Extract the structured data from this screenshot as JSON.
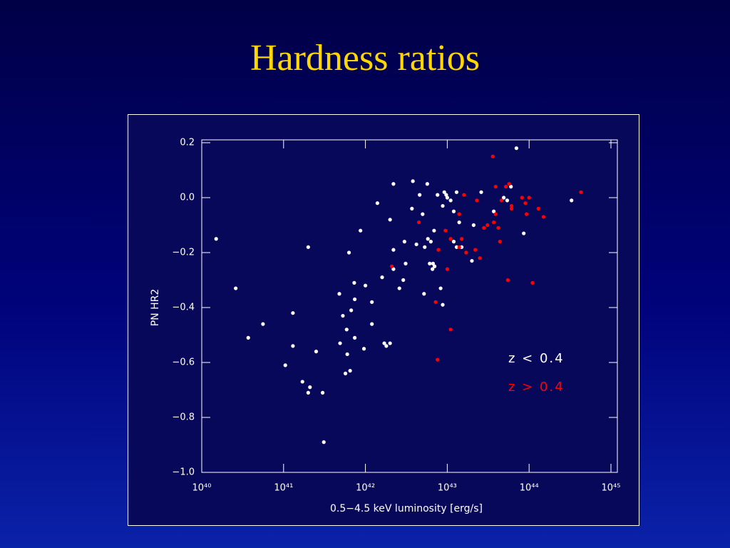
{
  "chart_data": {
    "type": "scatter",
    "title": "Hardness ratios",
    "x_label": "0.5−4.5 keV luminosity [erg/s]",
    "y_label": "PN HR2",
    "xscale": "log",
    "xlim": [
      1e+40,
      1e+45
    ],
    "ylim": [
      -1.0,
      0.2
    ],
    "xticks": [
      {
        "value": 1e+40,
        "label": "10⁴⁰"
      },
      {
        "value": 1e+41,
        "label": "10⁴¹"
      },
      {
        "value": 1e+42,
        "label": "10⁴²"
      },
      {
        "value": 1e+43,
        "label": "10⁴³"
      },
      {
        "value": 1e+44,
        "label": "10⁴⁴"
      },
      {
        "value": 1e+45,
        "label": "10⁴⁵"
      }
    ],
    "yticks": [
      0.2,
      {
        "value": 0.0,
        "label": "0.0"
      },
      {
        "value": -0.2,
        "label": "−0.2"
      },
      {
        "value": -0.4,
        "label": "−0.4"
      },
      {
        "value": -0.6,
        "label": "−0.6"
      },
      {
        "value": -0.8,
        "label": "−0.8"
      },
      {
        "value": -1.0,
        "label": "−1.0"
      }
    ],
    "legend_position": "right",
    "series": [
      {
        "name": "z < 0.4",
        "color": "#ffffff",
        "x": [
          1.5e+40,
          2.6e+40,
          3.7e+40,
          5.6e+40,
          1.05e+41,
          1.3e+41,
          1.3e+41,
          1.7e+41,
          2e+41,
          2.1e+41,
          2e+41,
          2.5e+41,
          3e+41,
          3.1e+41,
          4.8e+41,
          4.9e+41,
          5.3e+41,
          5.7e+41,
          5.9e+41,
          6e+41,
          6.5e+41,
          6.3e+41,
          6.7e+41,
          7.3e+41,
          7.4e+41,
          7.4e+41,
          8.7e+41,
          9.6e+41,
          1e+42,
          1.2e+42,
          1.2e+42,
          1.4e+42,
          1.6e+42,
          1.7e+42,
          1.8e+42,
          2e+42,
          2e+42,
          2.2e+42,
          2.2e+42,
          2.2e+42,
          2.6e+42,
          2.9e+42,
          3e+42,
          3.1e+42,
          3.7e+42,
          3.8e+42,
          4.2e+42,
          4.6e+42,
          5e+42,
          5.2e+42,
          5.3e+42,
          5.7e+42,
          5.8e+42,
          6.1e+42,
          6.3e+42,
          6.6e+42,
          6.7e+42,
          6.9e+42,
          7e+42,
          7.6e+42,
          8.3e+42,
          8.8e+42,
          8.8e+42,
          9.2e+42,
          9.7e+42,
          1e+43,
          1.1e+43,
          1.2e+43,
          1.2e+43,
          1.3e+43,
          1.3e+43,
          1.4e+43,
          1.5e+43,
          2e+43,
          2.1e+43,
          2.6e+43,
          3.7e+43,
          4.9e+43,
          5.4e+43,
          6e+43,
          7e+43,
          8.6e+43,
          3.3e+44
        ],
        "values": [
          -0.15,
          -0.33,
          -0.51,
          -0.46,
          -0.61,
          -0.42,
          -0.54,
          -0.67,
          -0.18,
          -0.69,
          -0.71,
          -0.56,
          -0.71,
          -0.89,
          -0.35,
          -0.53,
          -0.43,
          -0.64,
          -0.48,
          -0.57,
          -0.63,
          -0.2,
          -0.41,
          -0.31,
          -0.37,
          -0.51,
          -0.12,
          -0.55,
          -0.32,
          -0.38,
          -0.46,
          -0.02,
          -0.29,
          -0.53,
          -0.54,
          -0.53,
          -0.08,
          0.05,
          -0.19,
          -0.26,
          -0.33,
          -0.3,
          -0.16,
          -0.24,
          -0.04,
          0.06,
          -0.17,
          0.01,
          -0.06,
          -0.35,
          -0.18,
          0.05,
          -0.15,
          -0.24,
          -0.16,
          -0.26,
          -0.24,
          -0.12,
          -0.25,
          0.01,
          -0.33,
          -0.39,
          -0.03,
          0.02,
          0.01,
          0.0,
          -0.01,
          -0.05,
          -0.16,
          0.02,
          -0.18,
          -0.09,
          -0.18,
          -0.23,
          -0.1,
          0.02,
          -0.05,
          0.0,
          -0.01,
          0.04,
          0.18,
          -0.13,
          -0.01
        ]
      },
      {
        "name": "z > 0.4",
        "color": "#ff0000",
        "x": [
          2.1e+42,
          4.5e+42,
          7.2e+42,
          7.6e+42,
          7.8e+42,
          9.5e+42,
          1e+43,
          1.1e+43,
          1.1e+43,
          1.4e+43,
          1.4e+43,
          1.5e+43,
          1.6e+43,
          1.7e+43,
          2.2e+43,
          2.3e+43,
          2.5e+43,
          2.8e+43,
          3.1e+43,
          3.6e+43,
          3.7e+43,
          3.9e+43,
          3.9e+43,
          4.2e+43,
          4.4e+43,
          4.6e+43,
          5.2e+43,
          5.5e+43,
          5.7e+43,
          6.1e+43,
          6.1e+43,
          8.2e+43,
          9e+43,
          9.3e+43,
          1e+44,
          1.1e+44,
          1.3e+44,
          1.5e+44,
          4.3e+44
        ],
        "values": [
          -0.25,
          -0.09,
          -0.38,
          -0.59,
          -0.19,
          -0.12,
          -0.26,
          -0.48,
          -0.15,
          -0.06,
          -0.18,
          -0.15,
          0.01,
          -0.2,
          -0.19,
          -0.01,
          -0.22,
          -0.11,
          -0.1,
          0.15,
          -0.09,
          0.04,
          -0.06,
          -0.11,
          -0.16,
          -0.01,
          0.04,
          -0.3,
          0.05,
          -0.03,
          -0.04,
          0.0,
          -0.02,
          -0.06,
          0.0,
          -0.31,
          -0.04,
          -0.07,
          0.02
        ]
      }
    ]
  }
}
